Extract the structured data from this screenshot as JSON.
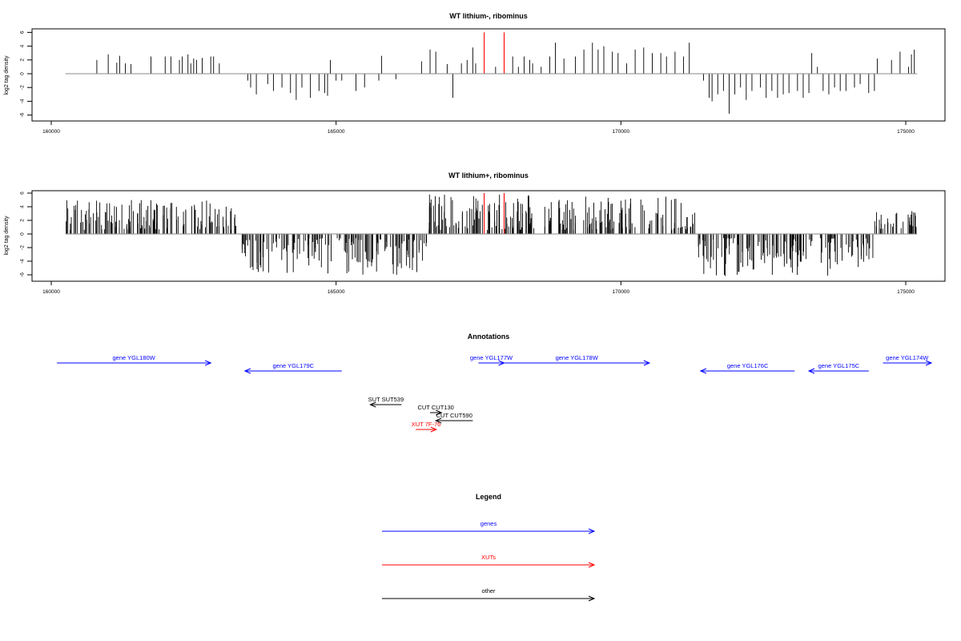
{
  "chart_data": [
    {
      "type": "bar",
      "title": "WT lithium-, ribominus",
      "ylabel": "log2 tag density",
      "xlim": [
        160000,
        176000
      ],
      "ylim": [
        -6,
        6
      ],
      "x_ticks": [
        160000,
        165000,
        170000,
        175000
      ],
      "y_ticks": [
        6,
        4,
        2,
        0,
        -2,
        -4,
        -6
      ],
      "baseline": [
        160250,
        175200
      ],
      "bar_color": "#000000",
      "highlight_color": "#ff0000",
      "series": [
        {
          "values": [
            [
              160800,
              2
            ],
            [
              161000,
              2.8
            ],
            [
              161150,
              1.6
            ],
            [
              161200,
              2.6
            ],
            [
              161300,
              1.5
            ],
            [
              161400,
              1.4
            ],
            [
              161750,
              2.5
            ],
            [
              162000,
              2.5
            ],
            [
              162100,
              2.5
            ],
            [
              162250,
              2
            ],
            [
              162300,
              2.5
            ],
            [
              162400,
              2.8
            ],
            [
              162450,
              1.5
            ],
            [
              162500,
              2.2
            ],
            [
              162550,
              2
            ],
            [
              162650,
              2.3
            ],
            [
              162800,
              2.5
            ],
            [
              162850,
              2.5
            ],
            [
              162950,
              1.5
            ],
            [
              163450,
              -1
            ],
            [
              163500,
              -2
            ],
            [
              163600,
              -3
            ],
            [
              163800,
              -1.5
            ],
            [
              163900,
              -2.5
            ],
            [
              164050,
              -2
            ],
            [
              164200,
              -2.8
            ],
            [
              164300,
              -3.8
            ],
            [
              164400,
              -2
            ],
            [
              164550,
              -3.5
            ],
            [
              164700,
              -2.5
            ],
            [
              164800,
              -2.8
            ],
            [
              164850,
              -3.2
            ],
            [
              164900,
              2
            ],
            [
              165000,
              -1
            ],
            [
              165100,
              -1
            ],
            [
              165350,
              -2.5
            ],
            [
              165500,
              -2
            ],
            [
              165800,
              2.6
            ],
            [
              165750,
              -1
            ],
            [
              166050,
              -0.8
            ],
            [
              166500,
              1.8
            ],
            [
              166650,
              3.5
            ],
            [
              166750,
              3.2
            ],
            [
              166950,
              1.4
            ],
            [
              167050,
              -3.5
            ],
            [
              167200,
              1.5
            ],
            [
              167300,
              2
            ],
            [
              167400,
              3.8
            ],
            [
              167450,
              1.5
            ],
            [
              167800,
              1
            ],
            [
              168100,
              2.5
            ],
            [
              168200,
              1
            ],
            [
              168300,
              2.5
            ],
            [
              168400,
              2
            ],
            [
              168450,
              1.5
            ],
            [
              168600,
              1
            ],
            [
              168750,
              2.5
            ],
            [
              168850,
              4.5
            ],
            [
              169000,
              2.2
            ],
            [
              169200,
              2.5
            ],
            [
              169350,
              3.5
            ],
            [
              169500,
              4.5
            ],
            [
              169600,
              3.5
            ],
            [
              169700,
              4
            ],
            [
              169850,
              3.2
            ],
            [
              169950,
              3
            ],
            [
              170100,
              1.5
            ],
            [
              170250,
              3.5
            ],
            [
              170400,
              3.8
            ],
            [
              170550,
              3
            ],
            [
              170700,
              3
            ],
            [
              170800,
              2.5
            ],
            [
              170950,
              3.2
            ],
            [
              171100,
              2.5
            ],
            [
              171200,
              4.5
            ],
            [
              171450,
              -1
            ],
            [
              171550,
              -3.5
            ],
            [
              171600,
              -4
            ],
            [
              171700,
              -3
            ],
            [
              171800,
              -2.5
            ],
            [
              171900,
              -5.8
            ],
            [
              172000,
              -3
            ],
            [
              172100,
              -2
            ],
            [
              172200,
              -3.8
            ],
            [
              172300,
              -2.5
            ],
            [
              172450,
              -2
            ],
            [
              172550,
              -3.5
            ],
            [
              172650,
              -2.5
            ],
            [
              172750,
              -3.5
            ],
            [
              172850,
              -3
            ],
            [
              172950,
              -2.8
            ],
            [
              173100,
              -2.5
            ],
            [
              173200,
              -3.5
            ],
            [
              173300,
              -2.8
            ],
            [
              173350,
              3
            ],
            [
              173450,
              1
            ],
            [
              173550,
              -2.5
            ],
            [
              173650,
              -3
            ],
            [
              173750,
              -2
            ],
            [
              173850,
              -2.5
            ],
            [
              173950,
              -2.5
            ],
            [
              174100,
              -2
            ],
            [
              174200,
              -1.5
            ],
            [
              174350,
              -2.8
            ],
            [
              174450,
              -2.5
            ],
            [
              174500,
              2.2
            ],
            [
              174750,
              2
            ],
            [
              174900,
              3.2
            ],
            [
              175050,
              1
            ],
            [
              175100,
              2.8
            ],
            [
              175150,
              3.5
            ]
          ]
        }
      ],
      "highlights": [
        [
          167600,
          6
        ],
        [
          167950,
          6
        ]
      ]
    },
    {
      "type": "bar",
      "title": "WT lithium+, ribominus",
      "ylabel": "log2 tag density",
      "xlim": [
        160000,
        176000
      ],
      "ylim": [
        -6,
        6
      ],
      "x_ticks": [
        160000,
        165000,
        170000,
        175000
      ],
      "y_ticks": [
        6,
        4,
        2,
        0,
        -2,
        -4,
        -6
      ],
      "baseline": [
        160250,
        175200
      ],
      "bar_color": "#000000",
      "highlight_color": "#ff0000",
      "generator": {
        "seed": 7,
        "density_per_kb": 45,
        "ranges": [
          {
            "from": 160250,
            "to": 163300,
            "sign": 1,
            "max": 5
          },
          {
            "from": 163300,
            "to": 166600,
            "sign": -1,
            "max": 6
          },
          {
            "from": 166600,
            "to": 171300,
            "sign": 1,
            "max": 5.8
          },
          {
            "from": 171300,
            "to": 174450,
            "sign": -1,
            "max": 6.2
          },
          {
            "from": 174450,
            "to": 175200,
            "sign": 1,
            "max": 3.5
          }
        ]
      },
      "highlights": [
        [
          167600,
          6
        ],
        [
          167950,
          6
        ]
      ]
    }
  ],
  "annotations": {
    "title": "Annotations",
    "items": [
      {
        "label": "gene YGL180W",
        "from": 160100,
        "to": 162800,
        "dir": "right",
        "row": 1,
        "color": "#0000ff"
      },
      {
        "label": "gene YGL179C",
        "from": 163400,
        "to": 165100,
        "dir": "left",
        "row": 2,
        "color": "#0000ff"
      },
      {
        "label": "gene YGL177W",
        "from": 167500,
        "to": 167950,
        "dir": "right",
        "row": 1,
        "color": "#0000ff"
      },
      {
        "label": "gene YGL178W",
        "from": 167950,
        "to": 170500,
        "dir": "right",
        "row": 1,
        "color": "#0000ff"
      },
      {
        "label": "gene YGL176C",
        "from": 171400,
        "to": 173050,
        "dir": "left",
        "row": 2,
        "color": "#0000ff"
      },
      {
        "label": "gene YGL175C",
        "from": 173300,
        "to": 174350,
        "dir": "left",
        "row": 2,
        "color": "#0000ff"
      },
      {
        "label": "gene YGL174W",
        "from": 174600,
        "to": 175450,
        "dir": "right",
        "row": 1,
        "color": "#0000ff"
      },
      {
        "label": "SUT SUT539",
        "from": 165600,
        "to": 166150,
        "dir": "left",
        "row": 3,
        "color": "#000000"
      },
      {
        "label": "CUT CUT130",
        "from": 166650,
        "to": 166850,
        "dir": "right",
        "row": 4,
        "color": "#000000"
      },
      {
        "label": "CUT CUT590",
        "from": 166750,
        "to": 167400,
        "dir": "left",
        "row": 5,
        "color": "#000000"
      },
      {
        "label": "XUT 7F-76",
        "from": 166400,
        "to": 166760,
        "dir": "right",
        "row": 6,
        "color": "#ff0000"
      }
    ]
  },
  "legend": {
    "title": "Legend",
    "items": [
      {
        "label": "genes",
        "color": "#0000ff"
      },
      {
        "label": "XUTs",
        "color": "#ff0000"
      },
      {
        "label": "other",
        "color": "#000000"
      }
    ]
  }
}
